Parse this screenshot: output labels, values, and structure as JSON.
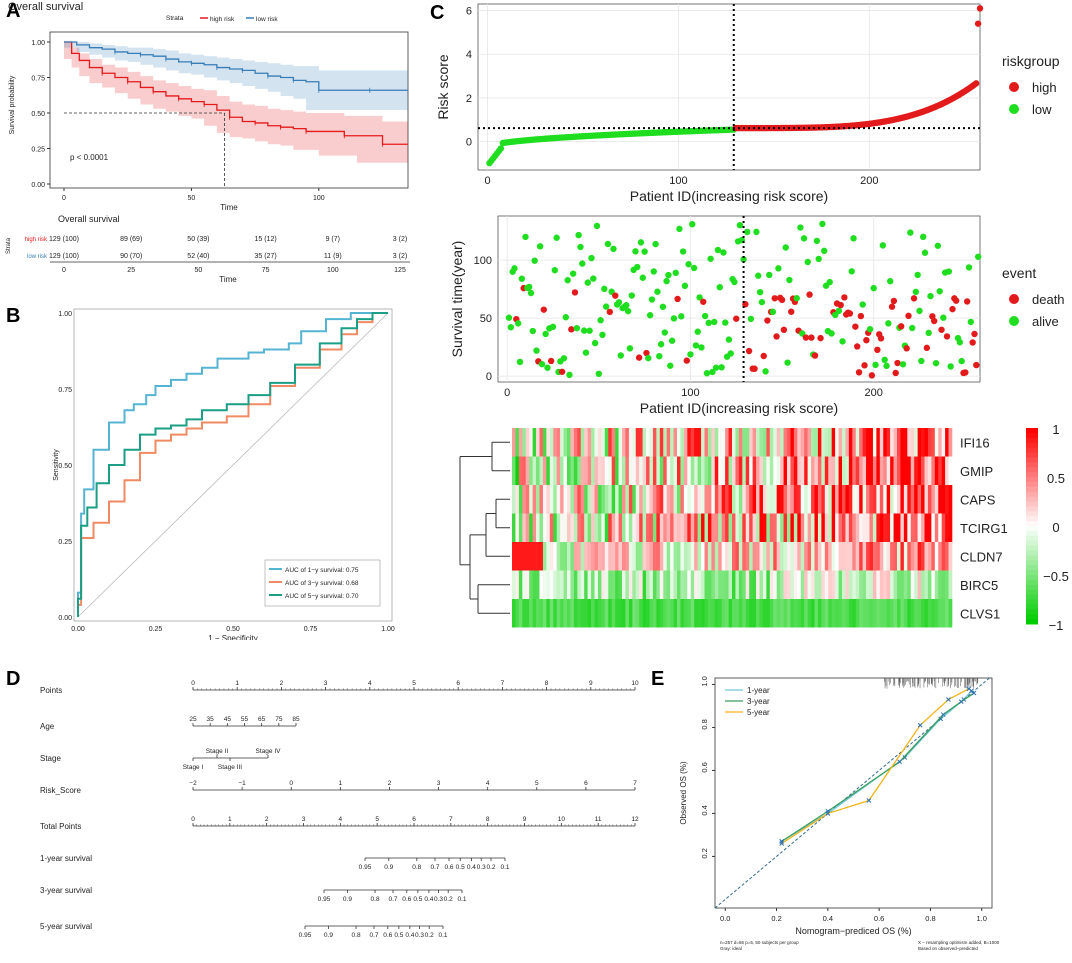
{
  "panels": {
    "a": "A",
    "b": "B",
    "c": "C",
    "d": "D",
    "e": "E"
  },
  "chart_data": [
    {
      "id": "A-km",
      "type": "line",
      "title": "Overall survival",
      "xlabel": "Time",
      "ylabel": "Survival probability",
      "legend_title": "Strata",
      "annotation": "p < 0.0001",
      "xlim": [
        0,
        135
      ],
      "ylim": [
        0,
        1
      ],
      "xticks": [
        0,
        50,
        100
      ],
      "yticks": [
        "0.00",
        "0.25",
        "0.50",
        "0.75",
        "1.00"
      ],
      "series": [
        {
          "name": "high risk",
          "color": "#e41a1c",
          "x": [
            0,
            3,
            6,
            10,
            15,
            20,
            25,
            30,
            35,
            40,
            45,
            50,
            55,
            60,
            65,
            70,
            75,
            80,
            85,
            90,
            95,
            100,
            110,
            115,
            125,
            135
          ],
          "y": [
            1.0,
            0.92,
            0.87,
            0.82,
            0.78,
            0.75,
            0.72,
            0.68,
            0.65,
            0.62,
            0.6,
            0.58,
            0.56,
            0.52,
            0.47,
            0.44,
            0.43,
            0.41,
            0.4,
            0.39,
            0.37,
            0.37,
            0.34,
            0.34,
            0.28,
            0.28
          ],
          "lo": [
            1.0,
            0.88,
            0.82,
            0.76,
            0.71,
            0.68,
            0.64,
            0.6,
            0.56,
            0.53,
            0.51,
            0.48,
            0.46,
            0.41,
            0.36,
            0.33,
            0.32,
            0.3,
            0.28,
            0.27,
            0.24,
            0.24,
            0.2,
            0.2,
            0.15,
            0.15
          ],
          "hi": [
            1.0,
            0.96,
            0.92,
            0.88,
            0.84,
            0.82,
            0.79,
            0.76,
            0.73,
            0.71,
            0.69,
            0.67,
            0.66,
            0.62,
            0.58,
            0.56,
            0.55,
            0.53,
            0.52,
            0.51,
            0.5,
            0.5,
            0.48,
            0.48,
            0.44,
            0.44
          ]
        },
        {
          "name": "low risk",
          "color": "#377eb8",
          "x": [
            0,
            5,
            10,
            15,
            20,
            25,
            30,
            35,
            40,
            45,
            50,
            55,
            60,
            65,
            70,
            75,
            80,
            85,
            90,
            95,
            100,
            110,
            120,
            135
          ],
          "y": [
            1.0,
            0.98,
            0.96,
            0.95,
            0.93,
            0.92,
            0.91,
            0.9,
            0.88,
            0.86,
            0.85,
            0.84,
            0.82,
            0.81,
            0.8,
            0.78,
            0.76,
            0.75,
            0.73,
            0.72,
            0.66,
            0.66,
            0.66,
            0.66
          ],
          "lo": [
            1.0,
            0.96,
            0.93,
            0.91,
            0.89,
            0.87,
            0.86,
            0.84,
            0.82,
            0.8,
            0.78,
            0.77,
            0.75,
            0.73,
            0.71,
            0.69,
            0.67,
            0.65,
            0.62,
            0.6,
            0.52,
            0.52,
            0.52,
            0.52
          ],
          "hi": [
            1.0,
            1.0,
            0.99,
            0.98,
            0.97,
            0.96,
            0.96,
            0.95,
            0.94,
            0.92,
            0.91,
            0.9,
            0.89,
            0.88,
            0.87,
            0.86,
            0.85,
            0.84,
            0.83,
            0.83,
            0.8,
            0.8,
            0.8,
            0.8
          ]
        }
      ],
      "median_time": 63
    },
    {
      "id": "A-risktable",
      "type": "table",
      "title": "Overall survival",
      "xlabel": "Time",
      "ylabel": "Strata",
      "xticks": [
        "0",
        "25",
        "50",
        "75",
        "100",
        "125"
      ],
      "rows": [
        {
          "name": "high risk",
          "color": "#e41a1c",
          "values": [
            "129 (100)",
            "89 (69)",
            "50 (39)",
            "15 (12)",
            "9 (7)",
            "3 (2)"
          ]
        },
        {
          "name": "low risk",
          "color": "#377eb8",
          "values": [
            "129 (100)",
            "90 (70)",
            "52 (40)",
            "35 (27)",
            "11 (9)",
            "3 (2)"
          ]
        }
      ]
    },
    {
      "id": "B-roc",
      "type": "line",
      "xlabel": "1 − Specificity",
      "ylabel": "Sensitivity",
      "xticks": [
        "0.00",
        "0.25",
        "0.50",
        "0.75",
        "1.00"
      ],
      "yticks": [
        "0.00",
        "0.25",
        "0.50",
        "0.75",
        "1.00"
      ],
      "series": [
        {
          "name": "AUC of 1−y survival: 0.75",
          "color": "#56b4d3",
          "x": [
            0,
            0.01,
            0.01,
            0.02,
            0.02,
            0.05,
            0.05,
            0.1,
            0.1,
            0.15,
            0.18,
            0.22,
            0.25,
            0.3,
            0.35,
            0.4,
            0.45,
            0.55,
            0.6,
            0.68,
            0.72,
            0.8,
            0.88,
            0.92,
            1.0
          ],
          "y": [
            0,
            0.08,
            0.3,
            0.34,
            0.4,
            0.42,
            0.5,
            0.55,
            0.6,
            0.64,
            0.68,
            0.7,
            0.73,
            0.76,
            0.78,
            0.8,
            0.82,
            0.85,
            0.87,
            0.88,
            0.9,
            0.94,
            0.98,
            1.0,
            1.0
          ]
        },
        {
          "name": "AUC of 3−y survival: 0.68",
          "color": "#f08a63",
          "x": [
            0,
            0.01,
            0.01,
            0.05,
            0.1,
            0.15,
            0.2,
            0.25,
            0.3,
            0.35,
            0.4,
            0.48,
            0.55,
            0.62,
            0.7,
            0.78,
            0.85,
            0.9,
            0.95,
            1.0
          ],
          "y": [
            0,
            0.04,
            0.2,
            0.26,
            0.31,
            0.38,
            0.45,
            0.54,
            0.58,
            0.6,
            0.62,
            0.64,
            0.66,
            0.7,
            0.76,
            0.82,
            0.88,
            0.93,
            0.97,
            1.0
          ]
        },
        {
          "name": "AUC of 5−y survival: 0.70",
          "color": "#1a9e85",
          "x": [
            0,
            0.01,
            0.01,
            0.03,
            0.06,
            0.1,
            0.15,
            0.2,
            0.25,
            0.3,
            0.35,
            0.4,
            0.48,
            0.55,
            0.62,
            0.7,
            0.78,
            0.85,
            0.9,
            0.95,
            1.0
          ],
          "y": [
            0,
            0.06,
            0.24,
            0.3,
            0.36,
            0.44,
            0.5,
            0.55,
            0.6,
            0.62,
            0.63,
            0.65,
            0.68,
            0.7,
            0.73,
            0.77,
            0.83,
            0.9,
            0.95,
            0.98,
            1.0
          ]
        }
      ]
    },
    {
      "id": "C-riskscore",
      "type": "scatter",
      "xlabel": "Patient ID(increasing risk score)",
      "ylabel": "Risk score",
      "xticks": [
        0,
        100,
        200
      ],
      "yticks": [
        0,
        2,
        4,
        6
      ],
      "xlim": [
        -5,
        258
      ],
      "ylim": [
        -1.3,
        6.3
      ],
      "cutoff_x": 129,
      "cutoff_y": 0.62,
      "legend_title": "riskgroup",
      "series": [
        {
          "name": "high",
          "color": "#e31a1c",
          "x_range": [
            130,
            258
          ],
          "y_start": 0.62,
          "y_end": 2.8,
          "outliers": [
            [
              257,
              5.4
            ],
            [
              258,
              6.1
            ]
          ]
        },
        {
          "name": "low",
          "color": "#1fdd1f",
          "x_range": [
            1,
            129
          ],
          "y_start": -1.1,
          "y_end": 0.6
        }
      ]
    },
    {
      "id": "C-survtime",
      "type": "scatter",
      "xlabel": "Patient ID(increasing risk score)",
      "ylabel": "Survival time(year)",
      "xticks": [
        0,
        100,
        200
      ],
      "yticks": [
        0,
        50,
        100
      ],
      "xlim": [
        -5,
        258
      ],
      "ylim": [
        -5,
        138
      ],
      "cutoff_x": 129,
      "legend_title": "event",
      "series": [
        {
          "name": "death",
          "color": "#e31a1c"
        },
        {
          "name": "alive",
          "color": "#1fdd1f"
        }
      ]
    },
    {
      "id": "C-heatmap",
      "type": "heatmap",
      "genes": [
        "IFI16",
        "GMIP",
        "CAPS",
        "TCIRG1",
        "CLDN7",
        "BIRC5",
        "CLVS1"
      ],
      "colorbar_ticks": [
        "1",
        "0.5",
        "0",
        "−0.5",
        "−1"
      ],
      "colors": {
        "high": "#ff0000",
        "mid": "#ffffff",
        "low": "#00cc00"
      }
    },
    {
      "id": "D-nomogram",
      "type": "table",
      "rows": [
        {
          "name": "Points",
          "ticks": [
            "0",
            "1",
            "2",
            "3",
            "4",
            "5",
            "6",
            "7",
            "8",
            "9",
            "10"
          ]
        },
        {
          "name": "Age",
          "ticks": [
            "25",
            "35",
            "45",
            "55",
            "65",
            "75",
            "85"
          ]
        },
        {
          "name": "Stage",
          "ticks": [
            "Stage I",
            "Stage II",
            "Stage III",
            "Stage IV"
          ]
        },
        {
          "name": "Risk_Score",
          "ticks": [
            "−2",
            "−1",
            "0",
            "1",
            "2",
            "3",
            "4",
            "5",
            "6",
            "7"
          ]
        },
        {
          "name": "Total Points",
          "ticks": [
            "0",
            "1",
            "2",
            "3",
            "4",
            "5",
            "6",
            "7",
            "8",
            "9",
            "10",
            "11",
            "12"
          ]
        },
        {
          "name": "1-year survival",
          "ticks": [
            "0.95",
            "0.9",
            "0.8",
            "0.7",
            "0.6",
            "0.5",
            "0.4",
            "0.3",
            "0.2",
            "0.1"
          ]
        },
        {
          "name": "3-year survival",
          "ticks": [
            "0.95",
            "0.9",
            "0.8",
            "0.7",
            "0.6",
            "0.5",
            "0.4",
            "0.3",
            "0.2",
            "0.1"
          ]
        },
        {
          "name": "5-year survival",
          "ticks": [
            "0.95",
            "0.9",
            "0.8",
            "0.7",
            "0.6",
            "0.5",
            "0.4",
            "0.3",
            "0.2",
            "0.1"
          ]
        }
      ]
    },
    {
      "id": "E-calibration",
      "type": "line",
      "xlabel": "Nomogram−prediced OS (%)",
      "ylabel": "Observed OS (%)",
      "xticks": [
        "0.0",
        "0.2",
        "0.4",
        "0.6",
        "0.8",
        "1.0"
      ],
      "yticks": [
        "0.2",
        "0.4",
        "0.6",
        "0.8",
        "1.0"
      ],
      "xlim": [
        -0.04,
        1.04
      ],
      "ylim": [
        -0.04,
        1.03
      ],
      "footer_left": [
        "n=257 d=86 p=5, 50 subjects per group",
        "Gray: ideal"
      ],
      "footer_right": [
        "X − resampling optimism added, B=1000",
        "Based on observed−predicted"
      ],
      "series": [
        {
          "name": "1-year",
          "color": "#6fc7d8",
          "x": [
            0.22,
            0.4,
            0.7,
            0.84,
            0.93,
            0.96
          ],
          "y": [
            0.27,
            0.4,
            0.66,
            0.84,
            0.93,
            0.97
          ]
        },
        {
          "name": "3-year",
          "color": "#3a9d5d",
          "x": [
            0.22,
            0.4,
            0.68,
            0.85,
            0.92,
            0.97
          ],
          "y": [
            0.27,
            0.41,
            0.64,
            0.86,
            0.92,
            0.96
          ]
        },
        {
          "name": "5-year",
          "color": "#f3b41a",
          "x": [
            0.22,
            0.4,
            0.56,
            0.76,
            0.87,
            0.95
          ],
          "y": [
            0.26,
            0.4,
            0.46,
            0.81,
            0.93,
            0.98
          ]
        }
      ]
    }
  ]
}
